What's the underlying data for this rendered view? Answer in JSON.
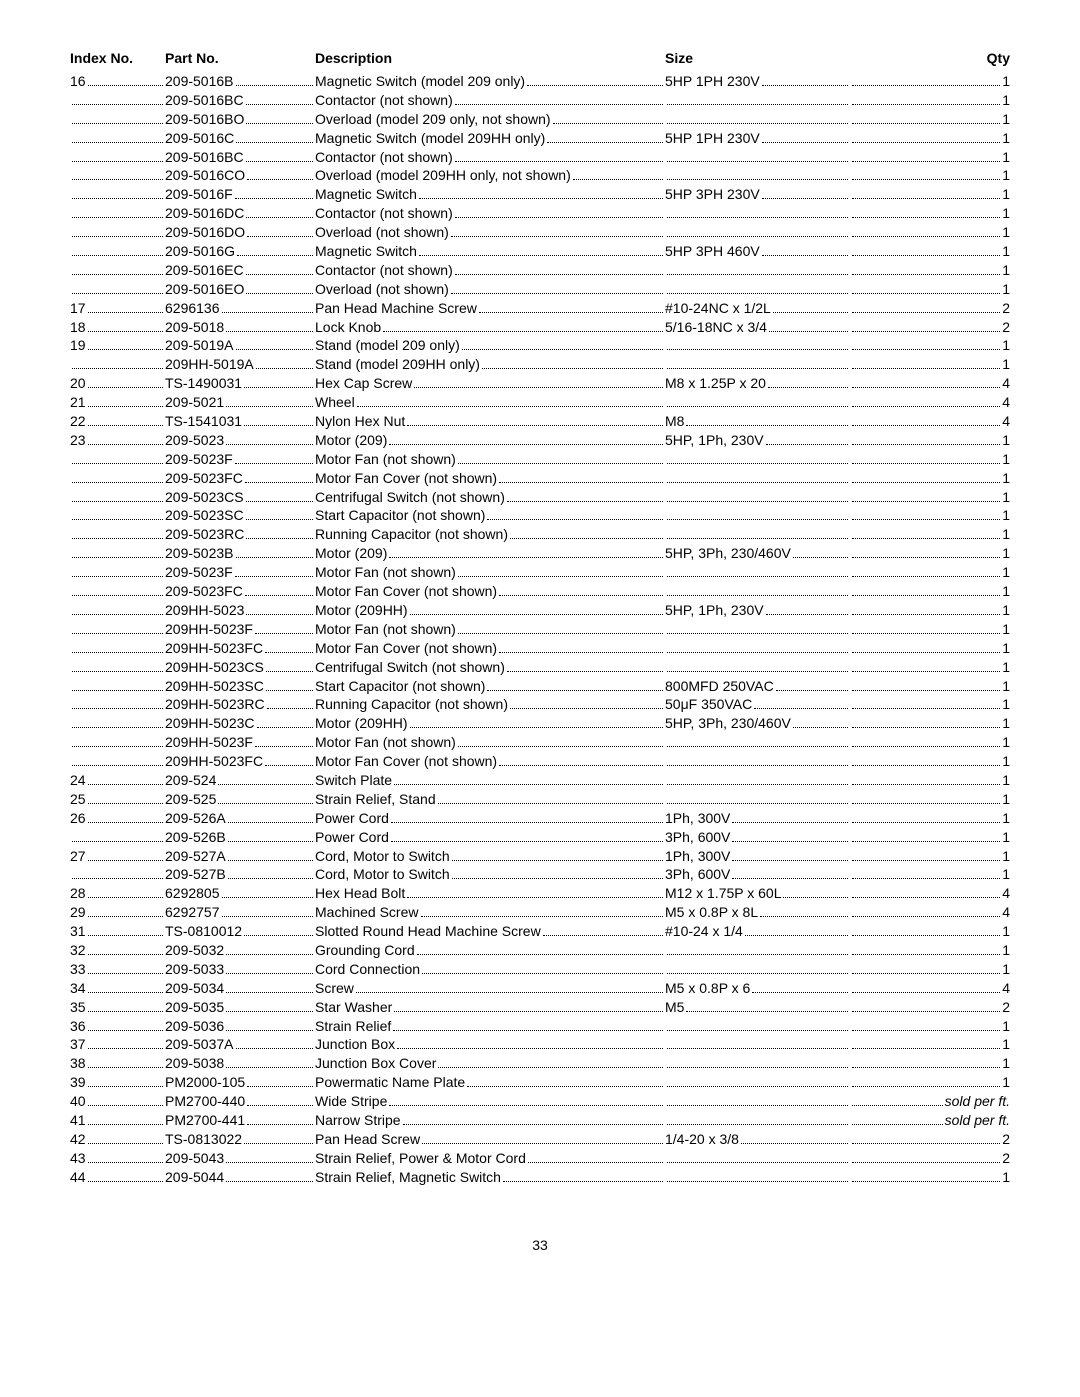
{
  "headers": {
    "index": "Index No.",
    "part": "Part No.",
    "desc": "Description",
    "size": "Size",
    "qty": "Qty"
  },
  "page_number": "33",
  "rows": [
    {
      "index": "16",
      "part": "209-5016B",
      "desc": "Magnetic Switch (model 209 only)",
      "size": "5HP 1PH 230V",
      "qty": "1"
    },
    {
      "index": "",
      "part": "209-5016BC",
      "desc": "Contactor (not shown)",
      "size": "",
      "qty": "1"
    },
    {
      "index": "",
      "part": "209-5016BO",
      "desc": "Overload (model 209 only, not shown)",
      "size": "",
      "qty": "1"
    },
    {
      "index": "",
      "part": "209-5016C",
      "desc": "Magnetic Switch (model 209HH only)",
      "size": "5HP 1PH 230V",
      "qty": "1"
    },
    {
      "index": "",
      "part": "209-5016BC",
      "desc": "Contactor (not shown)",
      "size": "",
      "qty": "1"
    },
    {
      "index": "",
      "part": "209-5016CO",
      "desc": "Overload (model 209HH only, not shown)",
      "size": "",
      "qty": "1"
    },
    {
      "index": "",
      "part": "209-5016F",
      "desc": "Magnetic Switch",
      "size": "5HP 3PH 230V",
      "qty": "1"
    },
    {
      "index": "",
      "part": "209-5016DC",
      "desc": "Contactor (not shown)",
      "size": "",
      "qty": "1"
    },
    {
      "index": "",
      "part": "209-5016DO",
      "desc": "Overload (not shown)",
      "size": "",
      "qty": "1"
    },
    {
      "index": "",
      "part": "209-5016G",
      "desc": "Magnetic Switch",
      "size": "5HP 3PH 460V",
      "qty": "1"
    },
    {
      "index": "",
      "part": "209-5016EC",
      "desc": "Contactor (not shown)",
      "size": "",
      "qty": "1"
    },
    {
      "index": "",
      "part": "209-5016EO",
      "desc": "Overload (not shown)",
      "size": "",
      "qty": "1"
    },
    {
      "index": "17",
      "part": "6296136",
      "desc": "Pan Head Machine Screw",
      "size": "#10-24NC x 1/2L",
      "qty": "2"
    },
    {
      "index": "18",
      "part": "209-5018",
      "desc": "Lock Knob",
      "size": "5/16-18NC x 3/4",
      "qty": "2"
    },
    {
      "index": "19",
      "part": "209-5019A",
      "desc": "Stand (model 209 only)",
      "size": "",
      "qty": "1"
    },
    {
      "index": "",
      "part": "209HH-5019A",
      "desc": "Stand (model 209HH only)",
      "size": "",
      "qty": "1"
    },
    {
      "index": "20",
      "part": "TS-1490031",
      "desc": "Hex Cap Screw",
      "size": "M8 x 1.25P x 20",
      "qty": "4"
    },
    {
      "index": "21",
      "part": "209-5021",
      "desc": "Wheel",
      "size": "",
      "qty": "4"
    },
    {
      "index": "22",
      "part": "TS-1541031",
      "desc": "Nylon Hex Nut",
      "size": "M8",
      "qty": "4"
    },
    {
      "index": "23",
      "part": "209-5023",
      "desc": "Motor (209)",
      "size": "5HP, 1Ph, 230V",
      "qty": "1"
    },
    {
      "index": "",
      "part": "209-5023F",
      "desc": "Motor Fan (not shown)",
      "size": "",
      "qty": "1"
    },
    {
      "index": "",
      "part": "209-5023FC",
      "desc": "Motor Fan Cover (not shown)",
      "size": "",
      "qty": "1"
    },
    {
      "index": "",
      "part": "209-5023CS",
      "desc": "Centrifugal Switch (not shown)",
      "size": "",
      "qty": "1"
    },
    {
      "index": "",
      "part": "209-5023SC",
      "desc": "Start Capacitor (not shown)",
      "size": "",
      "qty": "1"
    },
    {
      "index": "",
      "part": "209-5023RC",
      "desc": "Running Capacitor (not shown)",
      "size": "",
      "qty": "1"
    },
    {
      "index": "",
      "part": "209-5023B",
      "desc": "Motor (209)",
      "size": "5HP, 3Ph, 230/460V",
      "qty": "1"
    },
    {
      "index": "",
      "part": "209-5023F",
      "desc": "Motor Fan (not shown)",
      "size": "",
      "qty": "1"
    },
    {
      "index": "",
      "part": "209-5023FC",
      "desc": "Motor Fan Cover (not shown)",
      "size": "",
      "qty": "1"
    },
    {
      "index": "",
      "part": "209HH-5023",
      "desc": "Motor (209HH)",
      "size": "5HP, 1Ph, 230V",
      "qty": "1"
    },
    {
      "index": "",
      "part": "209HH-5023F",
      "desc": "Motor Fan (not shown)",
      "size": "",
      "qty": "1"
    },
    {
      "index": "",
      "part": "209HH-5023FC",
      "desc": "Motor Fan Cover (not shown)",
      "size": "",
      "qty": "1"
    },
    {
      "index": "",
      "part": "209HH-5023CS",
      "desc": "Centrifugal Switch (not shown)",
      "size": "",
      "qty": "1"
    },
    {
      "index": "",
      "part": "209HH-5023SC",
      "desc": "Start Capacitor (not shown)",
      "size": "800MFD 250VAC",
      "qty": "1"
    },
    {
      "index": "",
      "part": "209HH-5023RC",
      "desc": "Running Capacitor (not shown)",
      "size": "50μF 350VAC",
      "qty": "1"
    },
    {
      "index": "",
      "part": "209HH-5023C",
      "desc": "Motor (209HH)",
      "size": "5HP, 3Ph, 230/460V",
      "qty": "1"
    },
    {
      "index": "",
      "part": "209HH-5023F",
      "desc": "Motor Fan (not shown)",
      "size": "",
      "qty": "1"
    },
    {
      "index": "",
      "part": "209HH-5023FC",
      "desc": "Motor Fan Cover (not shown)",
      "size": "",
      "qty": "1"
    },
    {
      "index": "24",
      "part": "209-524",
      "desc": "Switch Plate",
      "size": "",
      "qty": "1"
    },
    {
      "index": "25",
      "part": "209-525",
      "desc": "Strain Relief, Stand",
      "size": "",
      "qty": "1"
    },
    {
      "index": "26",
      "part": "209-526A",
      "desc": "Power Cord",
      "size": "1Ph, 300V",
      "qty": "1"
    },
    {
      "index": "",
      "part": "209-526B",
      "desc": "Power Cord",
      "size": "3Ph, 600V",
      "qty": "1"
    },
    {
      "index": "27",
      "part": "209-527A",
      "desc": "Cord, Motor to Switch",
      "size": "1Ph, 300V",
      "qty": "1"
    },
    {
      "index": "",
      "part": "209-527B",
      "desc": "Cord, Motor to Switch",
      "size": "3Ph, 600V",
      "qty": "1"
    },
    {
      "index": "28",
      "part": "6292805",
      "desc": "Hex Head Bolt",
      "size": "M12 x 1.75P x 60L",
      "qty": "4"
    },
    {
      "index": "29",
      "part": "6292757",
      "desc": "Machined Screw",
      "size": "M5 x 0.8P x 8L",
      "qty": "4"
    },
    {
      "index": "31",
      "part": "TS-0810012",
      "desc": "Slotted Round Head Machine Screw",
      "size": "#10-24 x 1/4",
      "qty": "1"
    },
    {
      "index": "32",
      "part": "209-5032",
      "desc": "Grounding Cord",
      "size": "",
      "qty": "1"
    },
    {
      "index": "33",
      "part": "209-5033",
      "desc": "Cord Connection",
      "size": "",
      "qty": "1"
    },
    {
      "index": "34",
      "part": "209-5034",
      "desc": "Screw",
      "size": "M5 x 0.8P x 6",
      "qty": "4"
    },
    {
      "index": "35",
      "part": "209-5035",
      "desc": "Star Washer",
      "size": "M5",
      "qty": "2"
    },
    {
      "index": "36",
      "part": "209-5036",
      "desc": "Strain Relief",
      "size": "",
      "qty": "1"
    },
    {
      "index": "37",
      "part": "209-5037A",
      "desc": "Junction Box",
      "size": "",
      "qty": "1"
    },
    {
      "index": "38",
      "part": "209-5038",
      "desc": "Junction Box Cover",
      "size": "",
      "qty": "1"
    },
    {
      "index": "39",
      "part": "PM2000-105",
      "desc": "Powermatic Name Plate",
      "size": "",
      "qty": "1"
    },
    {
      "index": "40",
      "part": "PM2700-440",
      "desc": "Wide Stripe",
      "size": "",
      "qty": "sold per ft.",
      "qty_italic": true
    },
    {
      "index": "41",
      "part": "PM2700-441",
      "desc": "Narrow Stripe",
      "size": "",
      "qty": "sold per ft.",
      "qty_italic": true
    },
    {
      "index": "42",
      "part": "TS-0813022",
      "desc": "Pan Head Screw",
      "size": "1/4-20 x 3/8",
      "qty": "2"
    },
    {
      "index": "43",
      "part": "209-5043",
      "desc": "Strain Relief, Power & Motor Cord",
      "size": "",
      "qty": "2"
    },
    {
      "index": "44",
      "part": "209-5044",
      "desc": "Strain Relief, Magnetic Switch",
      "size": "",
      "qty": "1"
    }
  ]
}
